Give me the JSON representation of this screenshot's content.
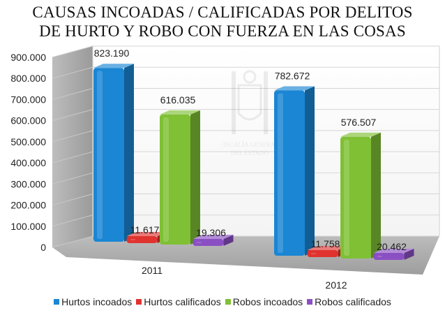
{
  "title": {
    "line1": "CAUSAS INCOADAS / CALIFICADAS POR DELITOS",
    "line2": "DE HURTO Y ROBO CON FUERZA EN LAS COSAS"
  },
  "watermark_text": "FISCALÍA GENERAL DEL ESTADO",
  "chart_data": {
    "type": "bar",
    "categories": [
      "2011",
      "2012"
    ],
    "series": [
      {
        "name": "Hurtos incoados",
        "color": "#1a86d4",
        "values": [
          823190,
          782672
        ],
        "labels": [
          "823.190",
          "782.672"
        ]
      },
      {
        "name": "Hurtos calificados",
        "color": "#e0332f",
        "values": [
          11617,
          11758
        ],
        "labels": [
          "11.617",
          "11.758"
        ]
      },
      {
        "name": "Robos incoados",
        "color": "#7fc034",
        "values": [
          616035,
          576507
        ],
        "labels": [
          "616.035",
          "576.507"
        ]
      },
      {
        "name": "Robos calificados",
        "color": "#8b4fc4",
        "values": [
          19306,
          20462
        ],
        "labels": [
          "19.306",
          "20.462"
        ]
      }
    ],
    "y_ticks": [
      "0",
      "100.000",
      "200.000",
      "300.000",
      "400.000",
      "500.000",
      "600.000",
      "700.000",
      "800.000",
      "900.000"
    ],
    "ylim": [
      0,
      900000
    ],
    "legend_position": "bottom",
    "style": "3d"
  }
}
